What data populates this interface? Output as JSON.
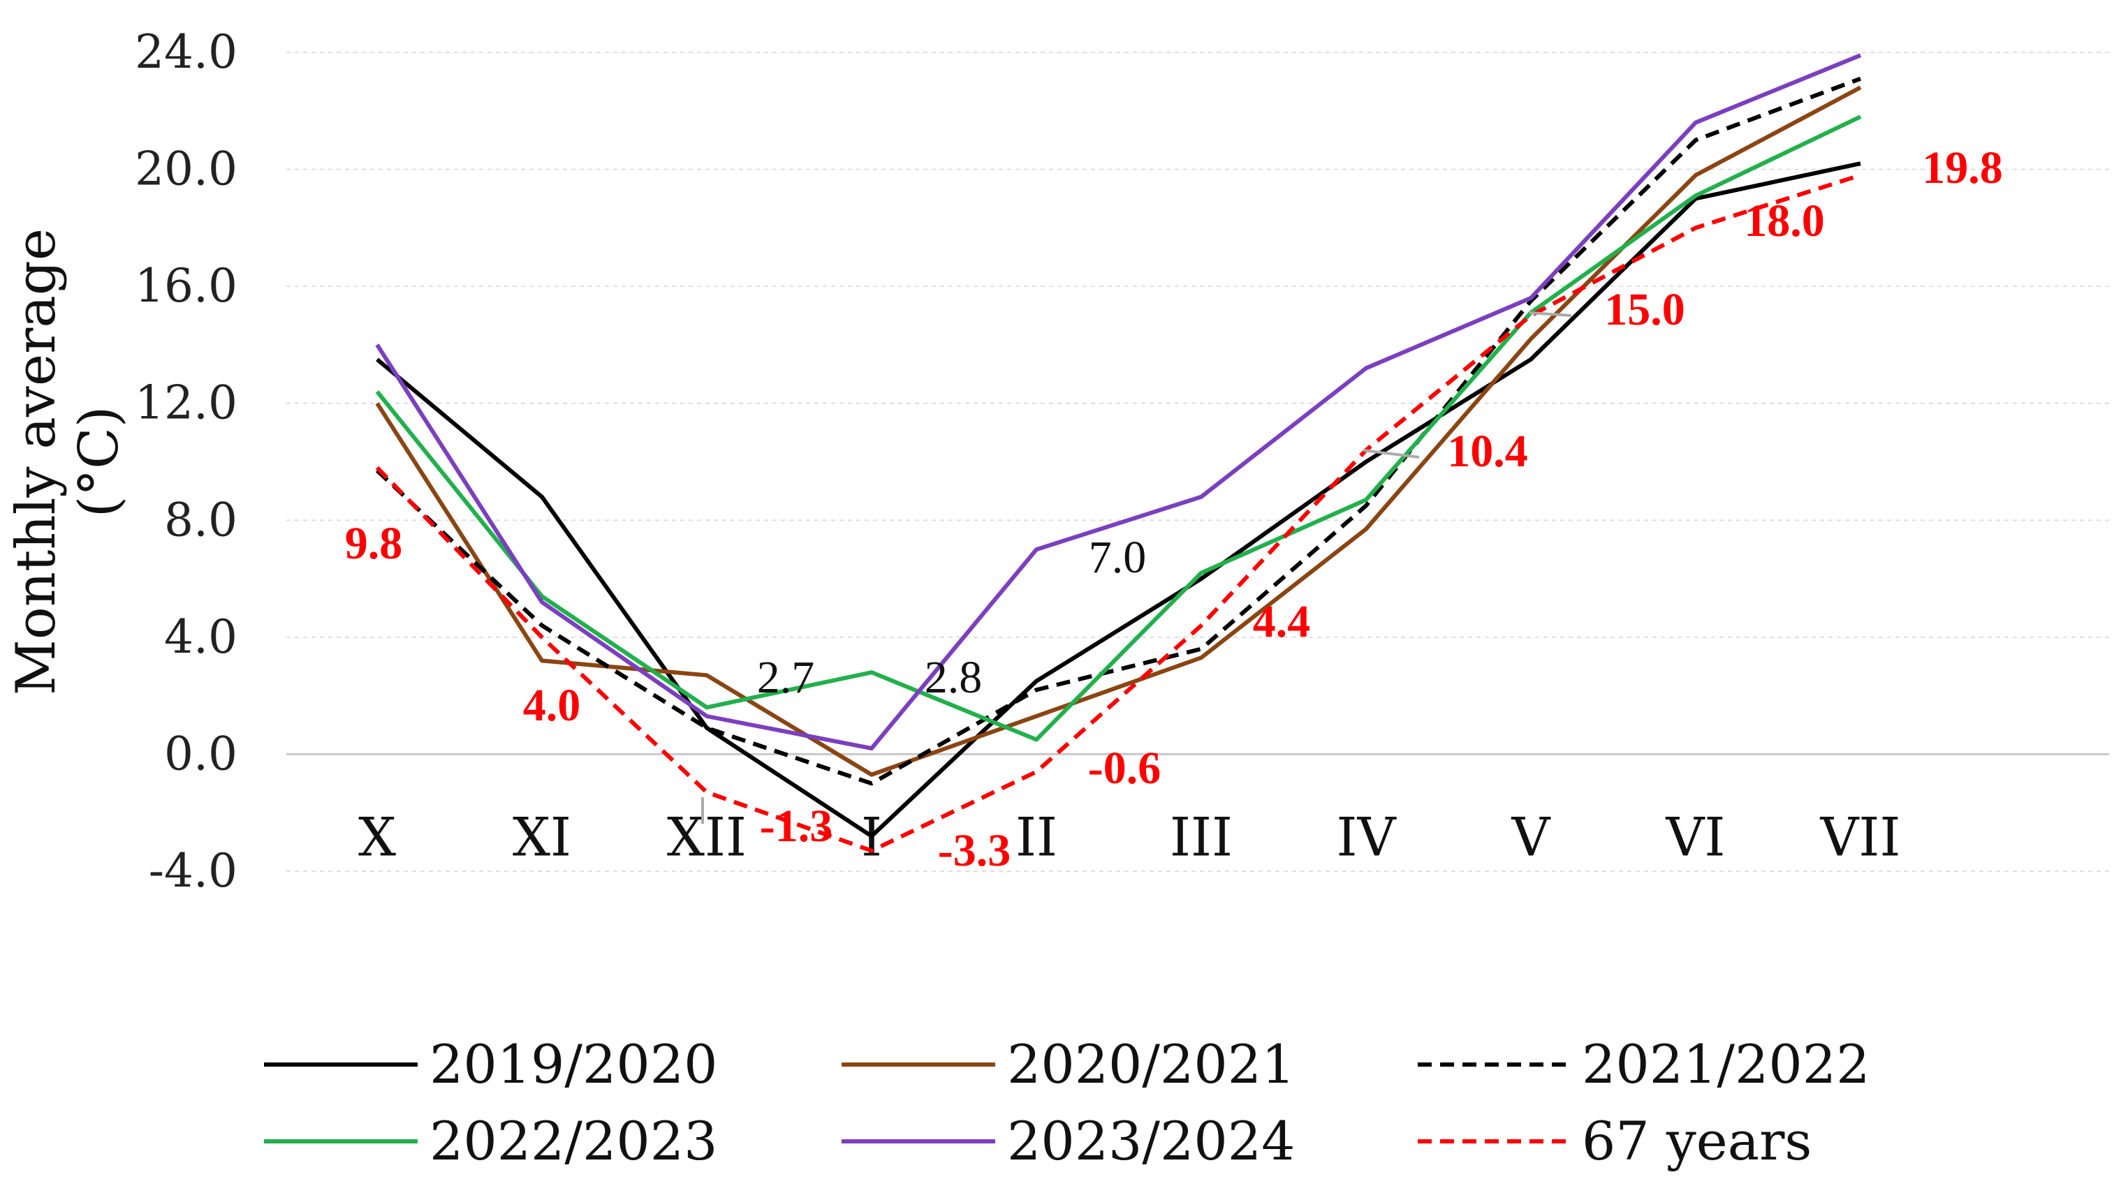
{
  "chart_data": {
    "type": "line",
    "title": "",
    "xlabel": "",
    "ylabel": "Monthly average (°C)",
    "ylabel_lines": [
      "Monthly average",
      "(°C)"
    ],
    "ylim": [
      -4.0,
      24.0
    ],
    "yticks": [
      -4.0,
      0.0,
      4.0,
      8.0,
      12.0,
      16.0,
      20.0,
      24.0
    ],
    "ytick_labels": [
      "-4.0",
      "0.0",
      "4.0",
      "8.0",
      "12.0",
      "16.0",
      "20.0",
      "24.0"
    ],
    "categories": [
      "X",
      "XI",
      "XII",
      "I",
      "II",
      "III",
      "IV",
      "V",
      "VI",
      "VII"
    ],
    "grid": "horizontal-dashed",
    "legend_position": "bottom",
    "series": [
      {
        "name": "2019/2020",
        "color": "#000000",
        "dash": "solid",
        "values": [
          13.5,
          8.8,
          0.9,
          -2.8,
          2.5,
          6.0,
          10.0,
          13.5,
          19.0,
          20.2
        ]
      },
      {
        "name": "2020/2021",
        "color": "#8b4513",
        "dash": "solid",
        "values": [
          12.0,
          3.2,
          2.7,
          -0.7,
          1.3,
          3.3,
          7.7,
          14.2,
          19.8,
          22.8
        ]
      },
      {
        "name": "2021/2022",
        "color": "#000000",
        "dash": "dashed",
        "values": [
          9.7,
          4.4,
          0.9,
          -1.0,
          2.2,
          3.6,
          8.5,
          15.5,
          21.0,
          23.1
        ]
      },
      {
        "name": "2022/2023",
        "color": "#22b04c",
        "dash": "solid",
        "values": [
          12.4,
          5.4,
          1.6,
          2.8,
          0.5,
          6.2,
          8.7,
          15.1,
          19.1,
          21.8
        ]
      },
      {
        "name": "2023/2024",
        "color": "#7b3fbf",
        "dash": "solid",
        "values": [
          14.0,
          5.2,
          1.3,
          0.2,
          7.0,
          8.8,
          13.2,
          15.6,
          21.6,
          23.9
        ]
      },
      {
        "name": "67 years",
        "color": "#ff0000",
        "dash": "dashed",
        "values": [
          9.8,
          4.0,
          -1.3,
          -3.3,
          -0.6,
          4.4,
          10.4,
          15.0,
          18.0,
          19.8
        ]
      }
    ],
    "annotations_red": [
      "9.8",
      "4.0",
      "-1.3",
      "-3.3",
      "-0.6",
      "4.4",
      "10.4",
      "15.0",
      "18.0",
      "19.8"
    ],
    "annotations_black": [
      "2.7",
      "2.8",
      "7.0"
    ]
  }
}
